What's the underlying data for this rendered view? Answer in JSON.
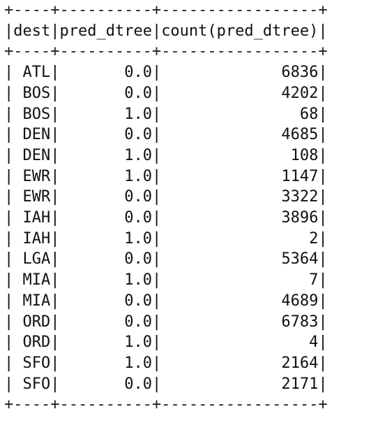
{
  "table": {
    "columns": [
      "dest",
      "pred_dtree",
      "count(pred_dtree)"
    ],
    "rows": [
      [
        "ATL",
        "0.0",
        "6836"
      ],
      [
        "BOS",
        "0.0",
        "4202"
      ],
      [
        "BOS",
        "1.0",
        "68"
      ],
      [
        "DEN",
        "0.0",
        "4685"
      ],
      [
        "DEN",
        "1.0",
        "108"
      ],
      [
        "EWR",
        "1.0",
        "1147"
      ],
      [
        "EWR",
        "0.0",
        "3322"
      ],
      [
        "IAH",
        "0.0",
        "3896"
      ],
      [
        "IAH",
        "1.0",
        "2"
      ],
      [
        "LGA",
        "0.0",
        "5364"
      ],
      [
        "MIA",
        "1.0",
        "7"
      ],
      [
        "MIA",
        "0.0",
        "4689"
      ],
      [
        "ORD",
        "0.0",
        "6783"
      ],
      [
        "ORD",
        "1.0",
        "4"
      ],
      [
        "SFO",
        "1.0",
        "2164"
      ],
      [
        "SFO",
        "0.0",
        "2171"
      ]
    ]
  }
}
